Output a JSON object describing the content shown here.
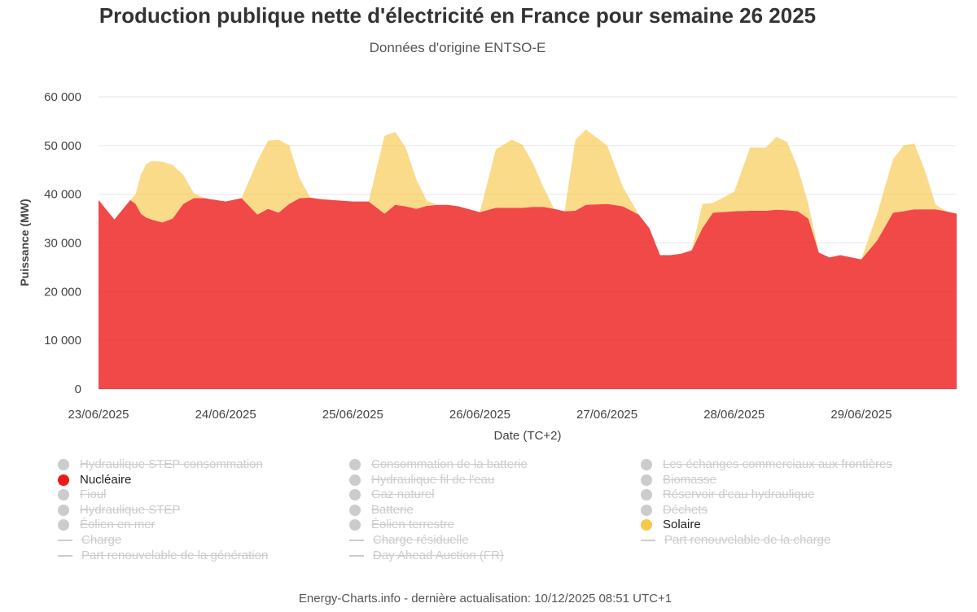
{
  "title": "Production publique nette d'électricité en France pour semaine 26 2025",
  "subtitle": "Données d'origine ENTSO-E",
  "footer": "Energy-Charts.info - dernière actualisation: 10/12/2025 08:51 UTC+1",
  "chart_data": {
    "type": "area",
    "stacked": true,
    "title": "Production publique nette d'électricité en France pour semaine 26 2025",
    "subtitle": "Données d'origine ENTSO-E",
    "xlabel": "Date (TC+2)",
    "ylabel": "Puissance (MW)",
    "ylim": [
      0,
      60000
    ],
    "yticks": [
      0,
      10000,
      20000,
      30000,
      40000,
      50000,
      60000
    ],
    "ytick_labels": [
      "0",
      "10 000",
      "20 000",
      "30 000",
      "40 000",
      "50 000",
      "60 000"
    ],
    "xlim_hours": [
      0,
      162
    ],
    "xtick_labels": [
      "23/06/2025",
      "24/06/2025",
      "25/06/2025",
      "26/06/2025",
      "27/06/2025",
      "28/06/2025",
      "29/06/2025"
    ],
    "x_hours": [
      0,
      3,
      6,
      7,
      8,
      9,
      10,
      12,
      14,
      16,
      18,
      20,
      24,
      27,
      30,
      32,
      34,
      36,
      38,
      40,
      42,
      44,
      48,
      51,
      54,
      56,
      58,
      60,
      62,
      64,
      66,
      68,
      72,
      75,
      78,
      80,
      82,
      84,
      86,
      88,
      90,
      92,
      96,
      99,
      102,
      104,
      106,
      108,
      110,
      112,
      114,
      116,
      120,
      123,
      126,
      128,
      130,
      132,
      134,
      136,
      138,
      140,
      144,
      147,
      150,
      152,
      154,
      156,
      158,
      160,
      162
    ],
    "series": [
      {
        "name": "Nucléaire",
        "color": "#ee1a1a",
        "values": [
          38800,
          34800,
          38800,
          38000,
          36000,
          35200,
          34800,
          34200,
          35000,
          38000,
          39200,
          39200,
          38500,
          39200,
          35800,
          37000,
          36200,
          38000,
          39200,
          39300,
          39000,
          38800,
          38500,
          38500,
          36000,
          37800,
          37500,
          37000,
          37600,
          37800,
          37800,
          37500,
          36300,
          37200,
          37200,
          37200,
          37400,
          37400,
          37000,
          36500,
          36600,
          37800,
          38000,
          37500,
          35800,
          33000,
          27500,
          27500,
          27800,
          28500,
          33000,
          36200,
          36500,
          36600,
          36600,
          36800,
          36700,
          36500,
          35000,
          28000,
          27000,
          27500,
          26600,
          30500,
          36200,
          36500,
          36900,
          36900,
          36900,
          36500,
          36000
        ]
      },
      {
        "name": "Solaire",
        "color": "#f7c84c",
        "values": [
          0,
          0,
          0,
          2000,
          8000,
          11000,
          12000,
          12500,
          11000,
          6000,
          1000,
          0,
          0,
          0,
          11000,
          14000,
          15000,
          12000,
          4000,
          0,
          0,
          0,
          0,
          0,
          16000,
          15000,
          12000,
          6000,
          1000,
          0,
          0,
          0,
          0,
          12000,
          14000,
          13000,
          9000,
          4000,
          0,
          0,
          14500,
          15500,
          12000,
          4000,
          0,
          0,
          0,
          0,
          0,
          0,
          5000,
          2000,
          4000,
          13000,
          13000,
          15000,
          14000,
          9000,
          3000,
          0,
          0,
          0,
          0,
          5500,
          11000,
          13500,
          13500,
          8000,
          1000,
          0,
          0
        ]
      }
    ],
    "legend_placement": "bottom"
  },
  "legend": {
    "items": [
      {
        "label": "Hydraulique STEP consommation",
        "color": "#cccccc",
        "shape": "circle",
        "visible": false
      },
      {
        "label": "Nucléaire",
        "color": "#ee1a1a",
        "shape": "circle",
        "visible": true
      },
      {
        "label": "Fioul",
        "color": "#cccccc",
        "shape": "circle",
        "visible": false
      },
      {
        "label": "Hydraulique STEP",
        "color": "#cccccc",
        "shape": "circle",
        "visible": false
      },
      {
        "label": "Éolien en mer",
        "color": "#cccccc",
        "shape": "circle",
        "visible": false
      },
      {
        "label": "Charge",
        "color": "#cccccc",
        "shape": "line",
        "visible": false
      },
      {
        "label": "Part renouvelable de la génération",
        "color": "#cccccc",
        "shape": "line",
        "visible": false
      },
      {
        "label": "Consommation de la batterie",
        "color": "#cccccc",
        "shape": "circle",
        "visible": false
      },
      {
        "label": "Hydraulique fil de l'eau",
        "color": "#cccccc",
        "shape": "circle",
        "visible": false
      },
      {
        "label": "Gaz naturel",
        "color": "#cccccc",
        "shape": "circle",
        "visible": false
      },
      {
        "label": "Batterie",
        "color": "#cccccc",
        "shape": "circle",
        "visible": false
      },
      {
        "label": "Éolien terrestre",
        "color": "#cccccc",
        "shape": "circle",
        "visible": false
      },
      {
        "label": "Charge résiduelle",
        "color": "#cccccc",
        "shape": "line",
        "visible": false
      },
      {
        "label": "Day Ahead Auction (FR)",
        "color": "#cccccc",
        "shape": "line",
        "visible": false
      },
      {
        "label": "Les échanges commerciaux aux frontières",
        "color": "#cccccc",
        "shape": "circle",
        "visible": false
      },
      {
        "label": "Biomasse",
        "color": "#cccccc",
        "shape": "circle",
        "visible": false
      },
      {
        "label": "Réservoir d'eau hydraulique",
        "color": "#cccccc",
        "shape": "circle",
        "visible": false
      },
      {
        "label": "Déchets",
        "color": "#cccccc",
        "shape": "circle",
        "visible": false
      },
      {
        "label": "Solaire",
        "color": "#f7c84c",
        "shape": "circle",
        "visible": true
      },
      {
        "label": "Part renouvelable de la charge",
        "color": "#cccccc",
        "shape": "line",
        "visible": false
      }
    ]
  }
}
